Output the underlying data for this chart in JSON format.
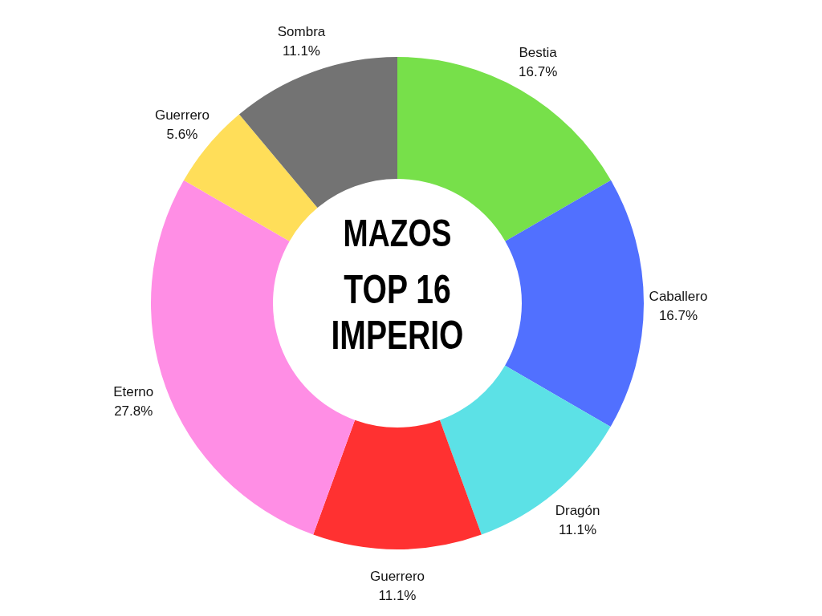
{
  "chart_data": {
    "type": "donut",
    "title": "MAZOS",
    "subtitle": "TOP 16 IMPERIO",
    "categories": [
      "Bestia",
      "Caballero",
      "Dragón",
      "Guerrero",
      "Eterno",
      "Guerrero",
      "Sombra"
    ],
    "values": [
      16.7,
      16.7,
      11.1,
      11.1,
      27.8,
      5.6,
      11.1
    ],
    "value_labels": [
      "16.7%",
      "16.7%",
      "11.1%",
      "11.1%",
      "27.8%",
      "5.6%",
      "11.1%"
    ],
    "colors": [
      "#77e04a",
      "#5170ff",
      "#5ce1e6",
      "#ff3131",
      "#ff8ee5",
      "#ffde59",
      "#737373"
    ],
    "legend": false
  }
}
